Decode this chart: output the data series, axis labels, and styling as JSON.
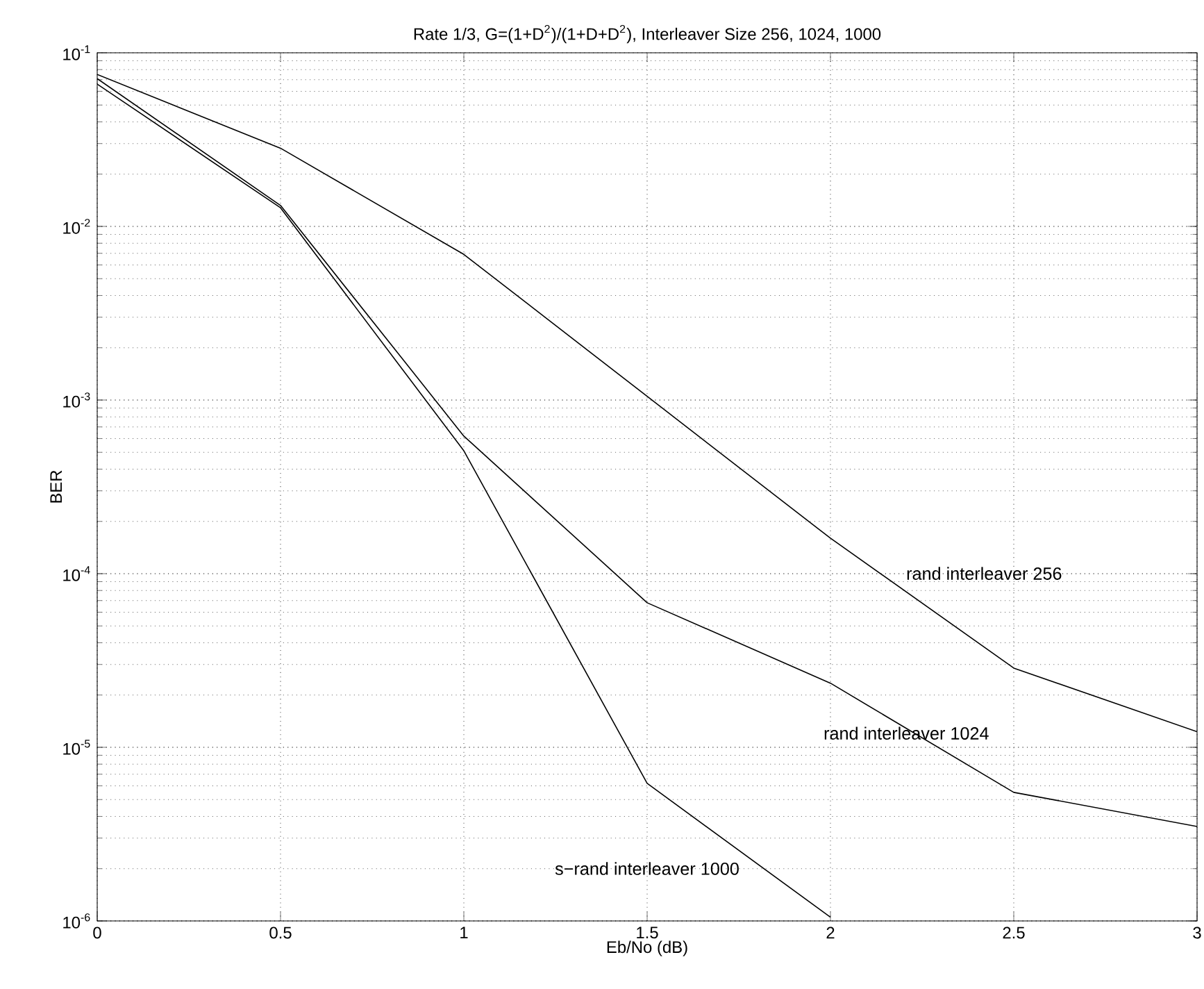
{
  "chart_data": {
    "type": "line",
    "title": "Rate 1/3, G=(1+D$^{2}$)/(1+D+D$^{2}$), Interleaver Size 256, 1024, 1000",
    "xlabel": "Eb/No  (dB)",
    "ylabel": "BER",
    "x": [
      0,
      0.5,
      1,
      1.5,
      2,
      2.5,
      3
    ],
    "series": [
      {
        "name": "rand interleaver 256",
        "color": "#000000",
        "values": [
          0.075,
          0.0282,
          0.0069,
          0.00105,
          0.00016,
          2.86e-05,
          1.23e-05
        ]
      },
      {
        "name": "rand interleaver 1024",
        "color": "#000000",
        "values": [
          0.071,
          0.0132,
          0.00062,
          6.8e-05,
          2.34e-05,
          5.5e-06,
          3.5e-06
        ]
      },
      {
        "name": "s−rand interleaver 1000",
        "color": "#000000",
        "x": [
          0,
          0.5,
          1,
          1.5,
          2
        ],
        "values": [
          0.066,
          0.0128,
          0.00051,
          6.2e-06,
          1.05e-06
        ]
      }
    ],
    "xlim": [
      0,
      3
    ],
    "ylim": [
      1e-06,
      0.1
    ],
    "xticks": [
      0,
      0.5,
      1,
      1.5,
      2,
      2.5,
      3
    ],
    "yticks": [
      {
        "value": 1e-06,
        "label": "10$^{-6}$"
      },
      {
        "value": 1e-05,
        "label": "10$^{-5}$"
      },
      {
        "value": 0.0001,
        "label": "10$^{-4}$"
      },
      {
        "value": 0.001,
        "label": "10$^{-3}$"
      },
      {
        "value": 0.01,
        "label": "10$^{-2}$"
      },
      {
        "value": 0.1,
        "label": "10$^{-1}$"
      }
    ],
    "log": "y",
    "grid": true,
    "marker": "none",
    "line_style": "solid"
  }
}
